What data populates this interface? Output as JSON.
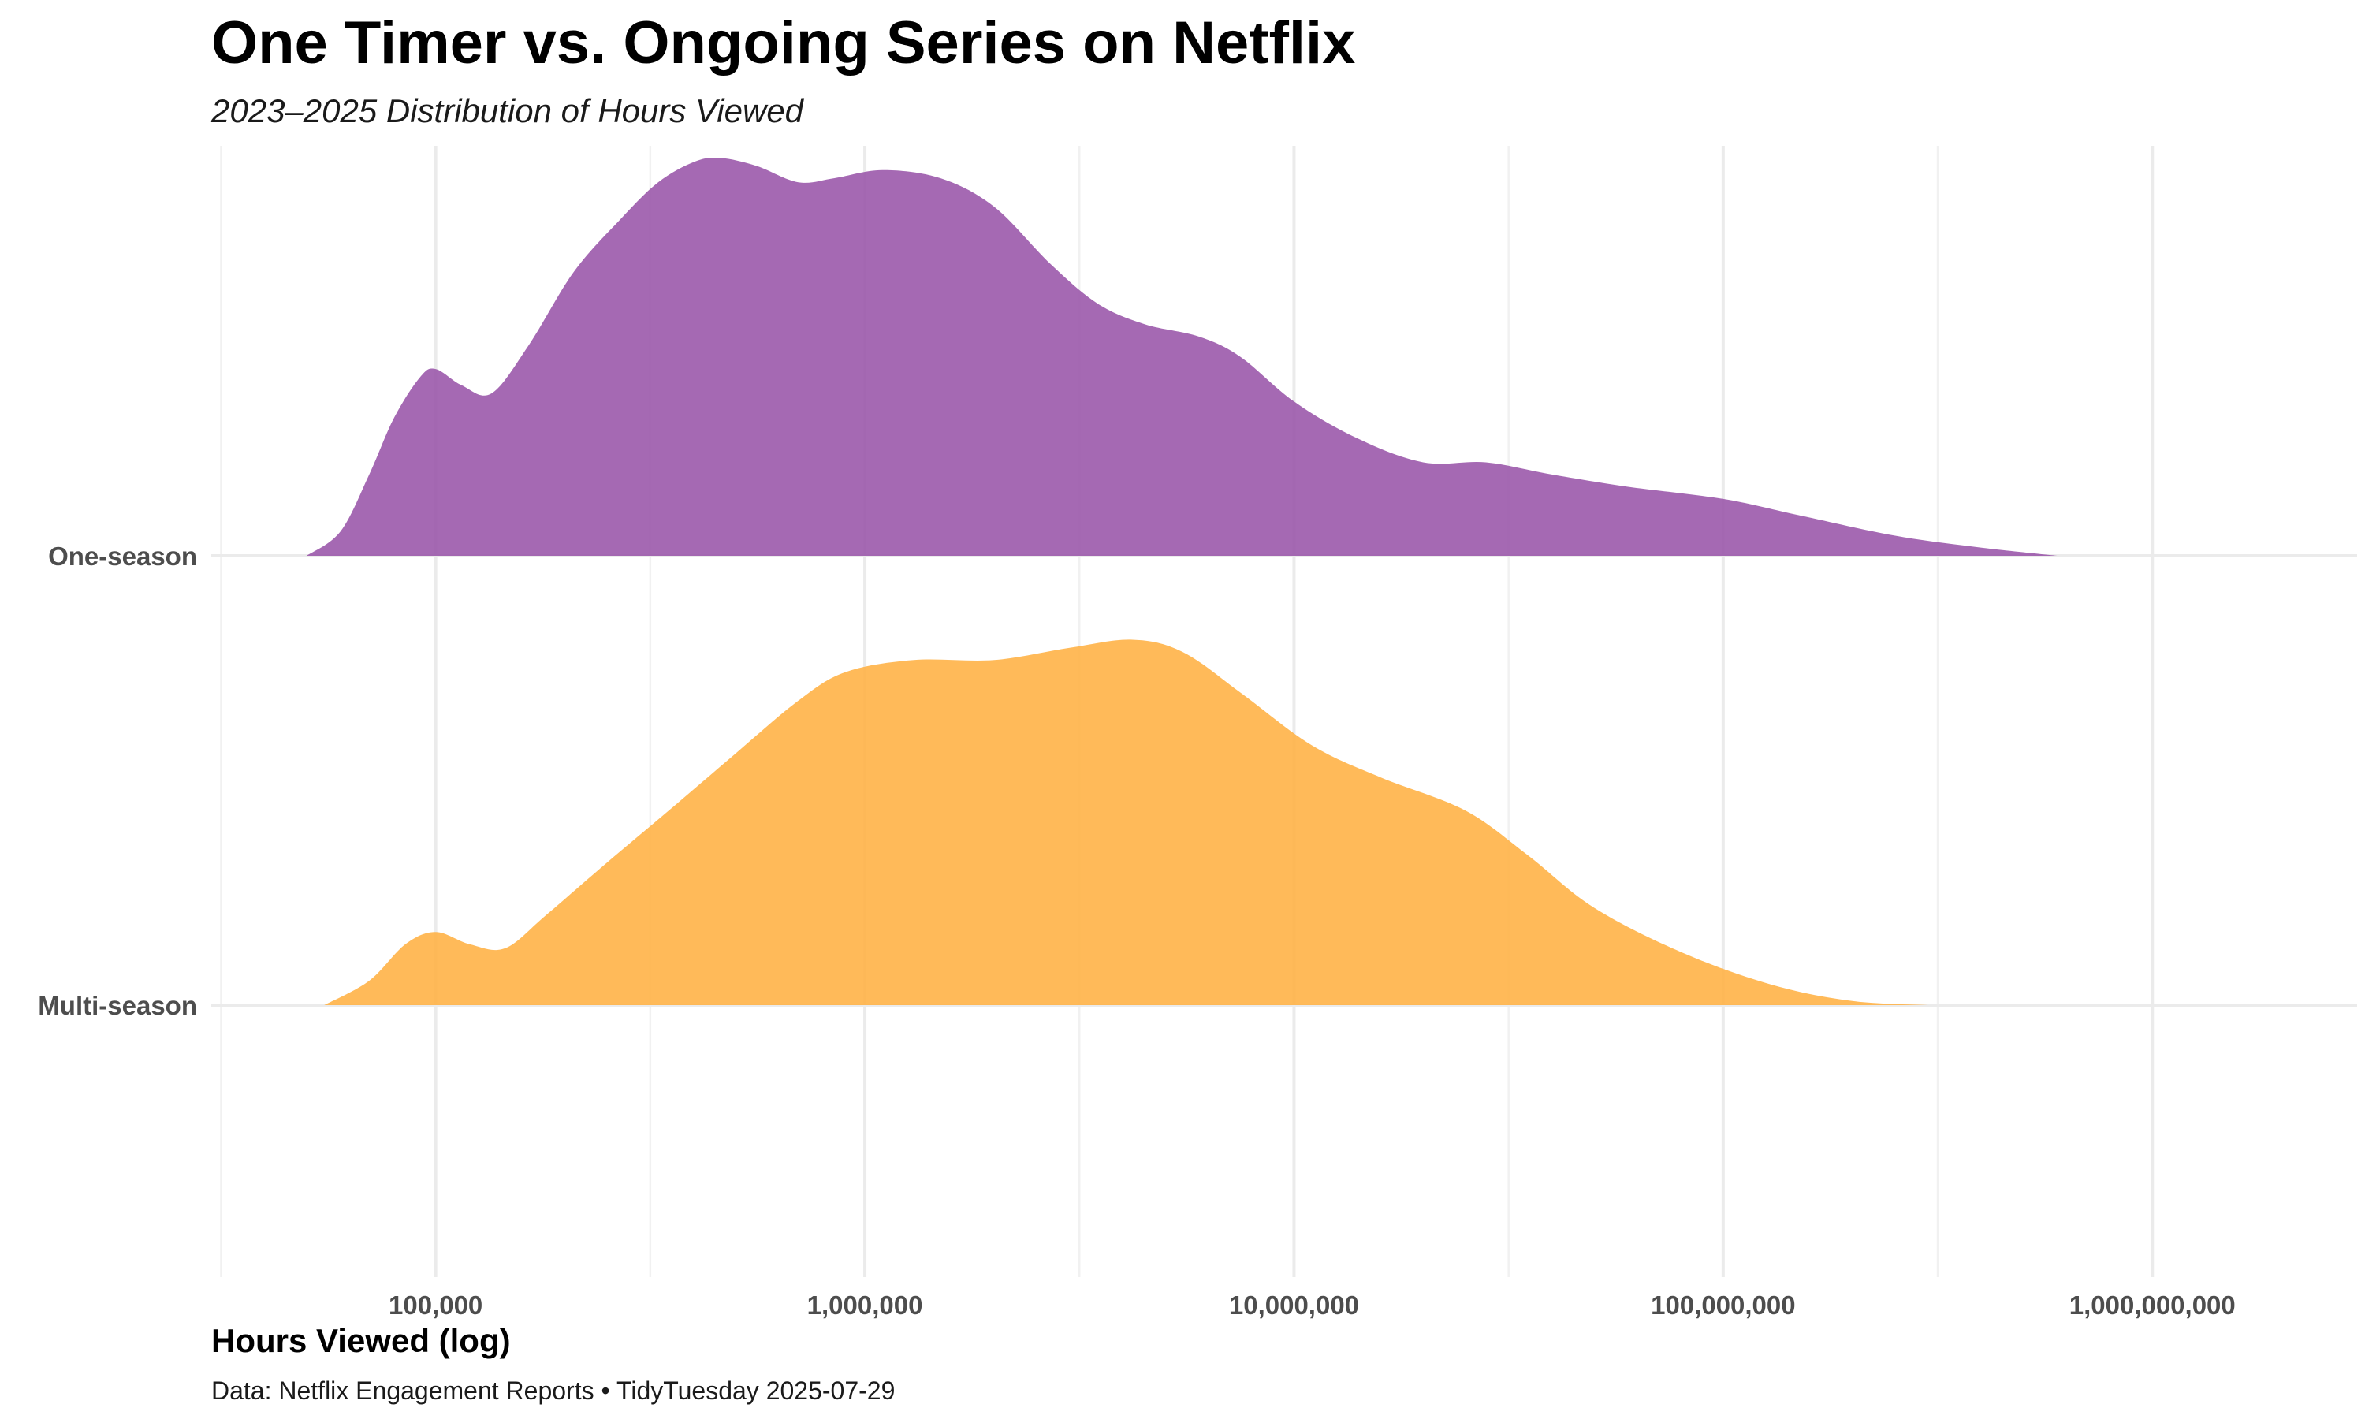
{
  "chart_data": {
    "type": "area",
    "subtype": "ridgeline-density",
    "title": "One Timer vs. Ongoing Series on Netflix",
    "subtitle": "2023–2025 Distribution of Hours Viewed",
    "xlabel": "Hours Viewed (log)",
    "ylabel": "",
    "caption": "Data: Netflix Engagement Reports • TidyTuesday 2025-07-29",
    "x_scale": "log10",
    "xlim": [
      30000,
      3000000000
    ],
    "x_ticks": [
      {
        "value": 100000,
        "label": "100,000"
      },
      {
        "value": 1000000,
        "label": "1,000,000"
      },
      {
        "value": 10000000,
        "label": "10,000,000"
      },
      {
        "value": 100000000,
        "label": "100,000,000"
      },
      {
        "value": 1000000000,
        "label": "1,000,000,000"
      }
    ],
    "grid": true,
    "legend": "none",
    "categories": [
      "One-season",
      "Multi-season"
    ],
    "density_axis_max": 1.0,
    "series": [
      {
        "category": "One-season",
        "color": "#9B59AB",
        "points": [
          [
            50000,
            0.0
          ],
          [
            60000,
            0.06
          ],
          [
            70000,
            0.2
          ],
          [
            80000,
            0.34
          ],
          [
            92000,
            0.44
          ],
          [
            100000,
            0.46
          ],
          [
            115000,
            0.42
          ],
          [
            135000,
            0.4
          ],
          [
            165000,
            0.52
          ],
          [
            210000,
            0.7
          ],
          [
            270000,
            0.83
          ],
          [
            330000,
            0.92
          ],
          [
            400000,
            0.97
          ],
          [
            460000,
            0.98
          ],
          [
            560000,
            0.96
          ],
          [
            700000,
            0.92
          ],
          [
            850000,
            0.93
          ],
          [
            1100000,
            0.95
          ],
          [
            1500000,
            0.93
          ],
          [
            2000000,
            0.86
          ],
          [
            2700000,
            0.72
          ],
          [
            3500000,
            0.62
          ],
          [
            4500000,
            0.57
          ],
          [
            6000000,
            0.54
          ],
          [
            7500000,
            0.49
          ],
          [
            10000000,
            0.38
          ],
          [
            14000000,
            0.29
          ],
          [
            20000000,
            0.23
          ],
          [
            28000000,
            0.23
          ],
          [
            40000000,
            0.2
          ],
          [
            60000000,
            0.17
          ],
          [
            100000000,
            0.14
          ],
          [
            150000000,
            0.1
          ],
          [
            250000000,
            0.05
          ],
          [
            400000000,
            0.02
          ],
          [
            600000000,
            0.0
          ]
        ]
      },
      {
        "category": "Multi-season",
        "color": "#FFB347",
        "points": [
          [
            55000,
            0.0
          ],
          [
            70000,
            0.06
          ],
          [
            85000,
            0.15
          ],
          [
            100000,
            0.18
          ],
          [
            120000,
            0.15
          ],
          [
            145000,
            0.14
          ],
          [
            180000,
            0.22
          ],
          [
            250000,
            0.35
          ],
          [
            350000,
            0.48
          ],
          [
            500000,
            0.62
          ],
          [
            700000,
            0.75
          ],
          [
            900000,
            0.82
          ],
          [
            1300000,
            0.85
          ],
          [
            2000000,
            0.85
          ],
          [
            3000000,
            0.88
          ],
          [
            4200000,
            0.9
          ],
          [
            5500000,
            0.87
          ],
          [
            7500000,
            0.77
          ],
          [
            11000000,
            0.64
          ],
          [
            16000000,
            0.56
          ],
          [
            25000000,
            0.48
          ],
          [
            35000000,
            0.37
          ],
          [
            50000000,
            0.24
          ],
          [
            80000000,
            0.13
          ],
          [
            130000000,
            0.05
          ],
          [
            200000000,
            0.01
          ],
          [
            300000000,
            0.0
          ]
        ]
      }
    ]
  }
}
